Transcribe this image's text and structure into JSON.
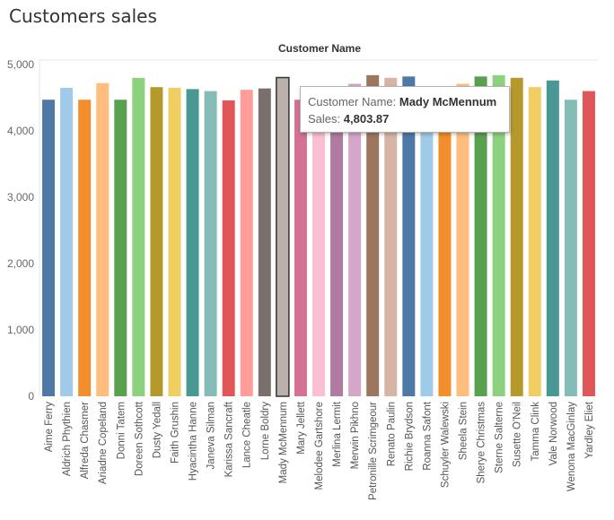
{
  "page": {
    "title": "Customers sales"
  },
  "chart_data": {
    "type": "bar",
    "title": "Customers sales",
    "header": "Customer Name",
    "xlabel": "",
    "ylabel": "",
    "ylim": [
      0,
      5000
    ],
    "yticks": [
      0,
      1000,
      2000,
      3000,
      4000,
      5000
    ],
    "ytick_labels": [
      "0",
      "1,000",
      "2,000",
      "3,000",
      "4,000",
      "5,000"
    ],
    "grid": false,
    "categories": [
      "Aime Ferry",
      "Aldrich Phythien",
      "Alfreda Chasmer",
      "Ariadne Copeland",
      "Donni Tatem",
      "Doreen Sothcott",
      "Dusty Yedall",
      "Faith Grushin",
      "Hyacintha Hanne",
      "Janeva Silman",
      "Karissa Sancraft",
      "Lance Cheatle",
      "Lorne Boldry",
      "Mady McMennum",
      "Mary Jellett",
      "Melodee Gartshore",
      "Merlina Lermit",
      "Merwin Pikhno",
      "Petronille Scrimgeour",
      "Renato Paulin",
      "Richie Brydson",
      "Roanna Safont",
      "Schuyler Walewski",
      "Sheela Stein",
      "Sherye Christmas",
      "Sterne Salterne",
      "Susette O'Neil",
      "Tamma Clink",
      "Vale Norwood",
      "Wenona MacGinlay",
      "Yardley Eliet"
    ],
    "values": [
      4470,
      4650,
      4470,
      4720,
      4470,
      4800,
      4660,
      4650,
      4630,
      4600,
      4460,
      4620,
      4640,
      4803.87,
      4470,
      4620,
      4650,
      4710,
      4840,
      4800,
      4820,
      4620,
      4640,
      4710,
      4820,
      4840,
      4800,
      4660,
      4760,
      4470,
      4600
    ],
    "colors": [
      "#4e79a7",
      "#a0cbe8",
      "#f28e2b",
      "#ffbe7d",
      "#59a14f",
      "#8cd17d",
      "#b6992d",
      "#f1ce63",
      "#499894",
      "#86bcb6",
      "#e15759",
      "#ff9d9a",
      "#79706e",
      "#bab0ac",
      "#d37295",
      "#fabfd2",
      "#b07aa1",
      "#d4a6c8",
      "#9d7660",
      "#d7b5a6",
      "#4e79a7",
      "#a0cbe8",
      "#f28e2b",
      "#ffbe7d",
      "#59a14f",
      "#8cd17d",
      "#b6992d",
      "#f1ce63",
      "#499894",
      "#86bcb6",
      "#e15759"
    ],
    "highlighted": "Mady McMennum",
    "tooltip": {
      "name_label": "Customer Name:",
      "name_value": "Mady McMennum",
      "sales_label": "Sales:",
      "sales_value": "4,803.87"
    }
  }
}
